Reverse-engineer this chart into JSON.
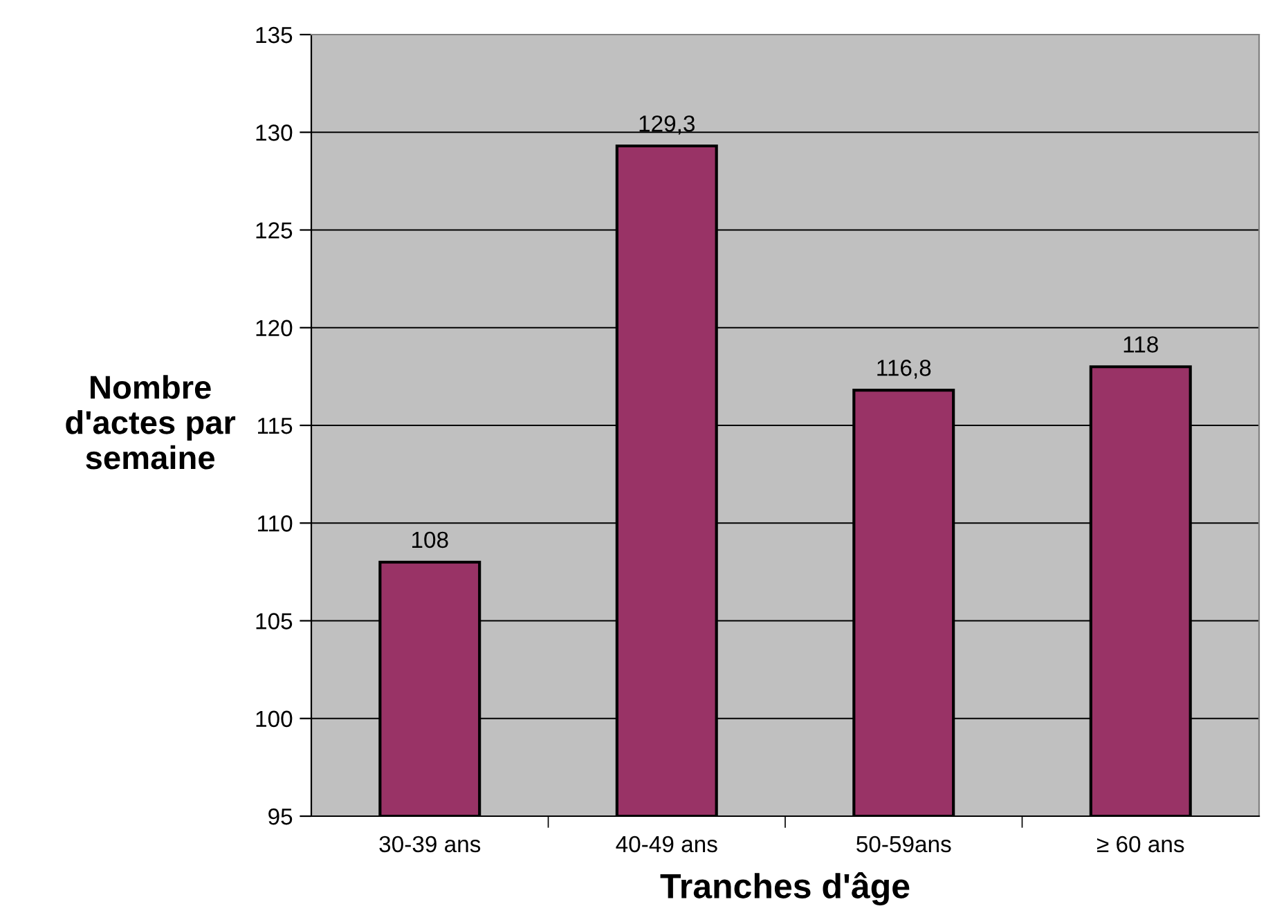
{
  "chart_data": {
    "type": "bar",
    "xlabel": "Tranches d'âge",
    "ylabel": "Nombre\nd'actes par\nsemaine",
    "categories": [
      "30-39 ans",
      "40-49 ans",
      "50-59ans",
      "≥ 60 ans"
    ],
    "values": [
      108,
      129.3,
      116.8,
      118
    ],
    "value_labels": [
      "108",
      "129,3",
      "116,8",
      "118"
    ],
    "color": "#993366",
    "ylim": [
      95,
      135
    ],
    "yticks": [
      95,
      100,
      105,
      110,
      115,
      120,
      125,
      130,
      135
    ],
    "grid": "y"
  }
}
